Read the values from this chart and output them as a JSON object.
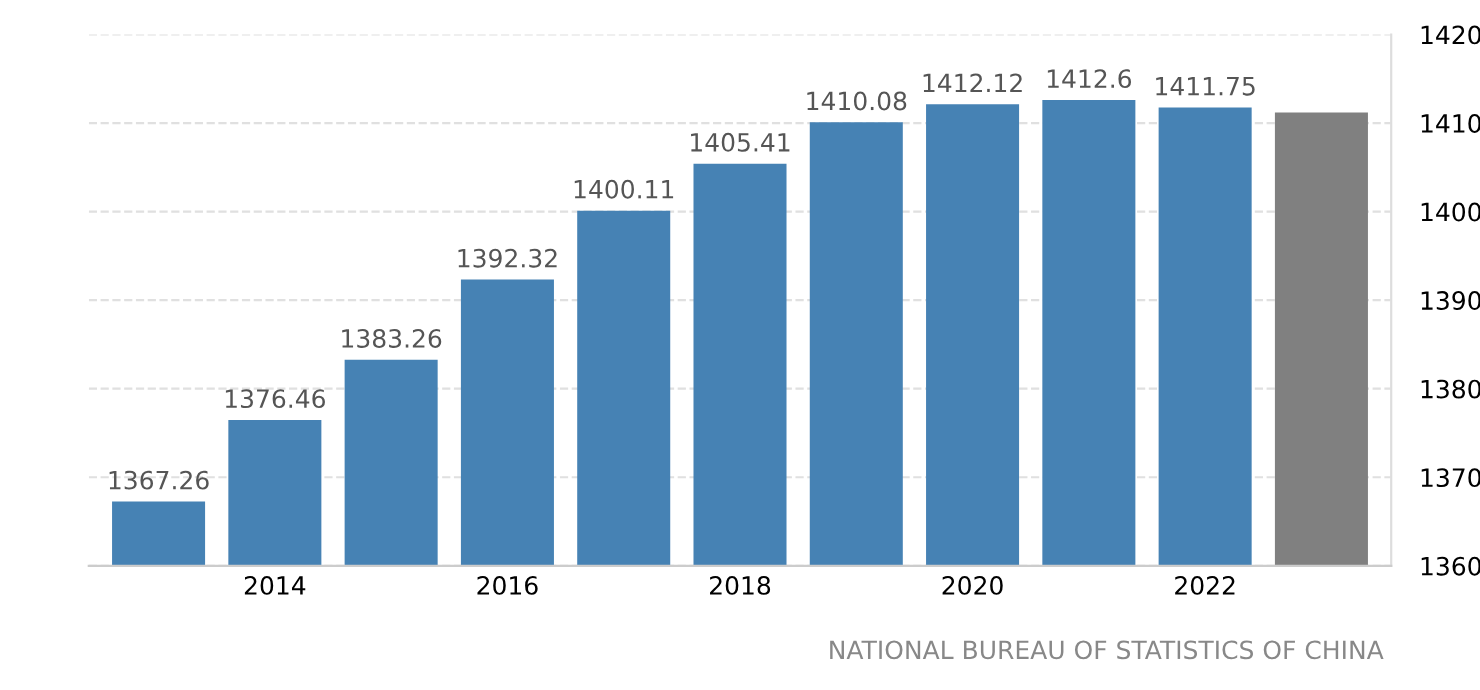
{
  "chart_data": {
    "type": "bar",
    "categories": [
      null,
      "2014",
      null,
      "2016",
      null,
      "2018",
      null,
      "2020",
      null,
      "2022",
      null
    ],
    "values": [
      1367.26,
      1376.46,
      1383.26,
      1392.32,
      1400.11,
      1405.41,
      1410.08,
      1412.12,
      1412.6,
      1411.75,
      1411.2
    ],
    "value_labels": [
      "1367.26",
      "1376.46",
      "1383.26",
      "1392.32",
      "1400.11",
      "1405.41",
      "1410.08",
      "1412.12",
      "1412.6",
      "1411.75",
      null
    ],
    "colors": [
      "#4682b4",
      "#4682b4",
      "#4682b4",
      "#4682b4",
      "#4682b4",
      "#4682b4",
      "#4682b4",
      "#4682b4",
      "#4682b4",
      "#4682b4",
      "#808080"
    ],
    "ylim": [
      1360,
      1420
    ],
    "yticks": [
      1360,
      1370,
      1380,
      1390,
      1400,
      1410,
      1420
    ],
    "grid": "y",
    "legend": false,
    "annotations": [
      "NATIONAL BUREAU OF STATISTICS OF CHINA"
    ]
  }
}
